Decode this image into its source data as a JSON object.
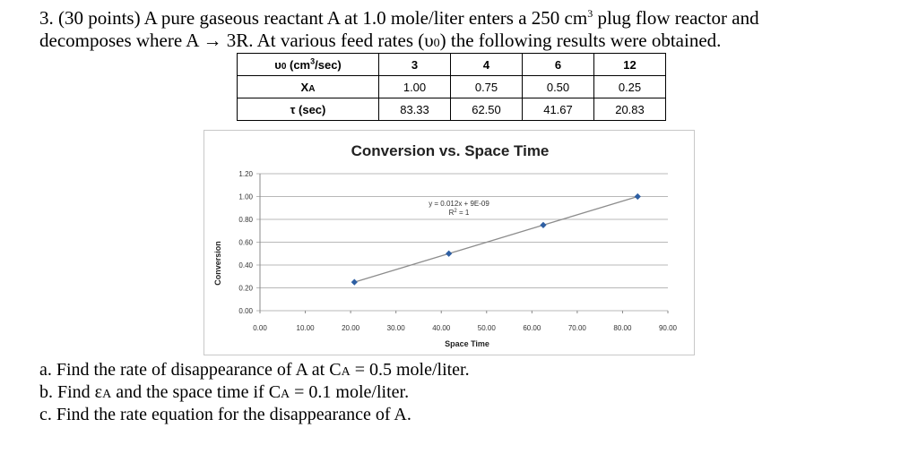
{
  "problem": {
    "number": "3.",
    "points": "(30 points)",
    "text1a": "A pure gaseous reactant A at 1.0 mole/liter enters a 250 cm",
    "text1_sup": "3",
    "text1b": " plug flow reactor and",
    "text2a": "decomposes where A",
    "arrow": "→",
    "text2b": "3R.  At various feed rates (υ",
    "text2_sub": "0",
    "text2c": ") the following results were obtained."
  },
  "table": {
    "row1_label_a": "υ",
    "row1_label_sub": "0",
    "row1_label_b": " (cm",
    "row1_label_sup": "3",
    "row1_label_c": "/sec)",
    "row2_label": "X",
    "row2_label_sub": "A",
    "row3_label": "τ (sec)",
    "feed_rates": [
      "3",
      "4",
      "6",
      "12"
    ],
    "conversions": [
      "1.00",
      "0.75",
      "0.50",
      "0.25"
    ],
    "space_times": [
      "83.33",
      "62.50",
      "41.67",
      "20.83"
    ]
  },
  "chart_data": {
    "type": "scatter",
    "title": "Conversion vs. Space Time",
    "xlabel": "Space Time",
    "ylabel": "Conversion",
    "xlim": [
      0,
      90
    ],
    "ylim": [
      0,
      1.2
    ],
    "x_ticks": [
      "0.00",
      "10.00",
      "20.00",
      "30.00",
      "40.00",
      "50.00",
      "60.00",
      "70.00",
      "80.00",
      "90.00"
    ],
    "y_ticks": [
      "0.00",
      "0.20",
      "0.40",
      "0.60",
      "0.80",
      "1.00",
      "1.20"
    ],
    "grid": true,
    "series": [
      {
        "name": "Conversion",
        "x": [
          20.83,
          41.67,
          62.5,
          83.33
        ],
        "y": [
          0.25,
          0.5,
          0.75,
          1.0
        ]
      }
    ],
    "trendline": {
      "equation": "y = 0.012x + 9E-09",
      "r2_label": "R",
      "r2_sup": "2",
      "r2_value": " = 1"
    },
    "colors": {
      "line": "#8c8c8c",
      "marker": "#2e5fa3",
      "grid": "#b8b8b8"
    }
  },
  "questions": {
    "a": "a. Find the rate of disappearance of A at C",
    "a_sub": "A",
    "a_rest": " = 0.5 mole/liter.",
    "b": "b. Find ε",
    "b_sub": "A",
    "b_mid": " and the space time if C",
    "b_sub2": "A",
    "b_rest": " = 0.1 mole/liter.",
    "c": "c. Find the rate equation for the disappearance of A."
  }
}
